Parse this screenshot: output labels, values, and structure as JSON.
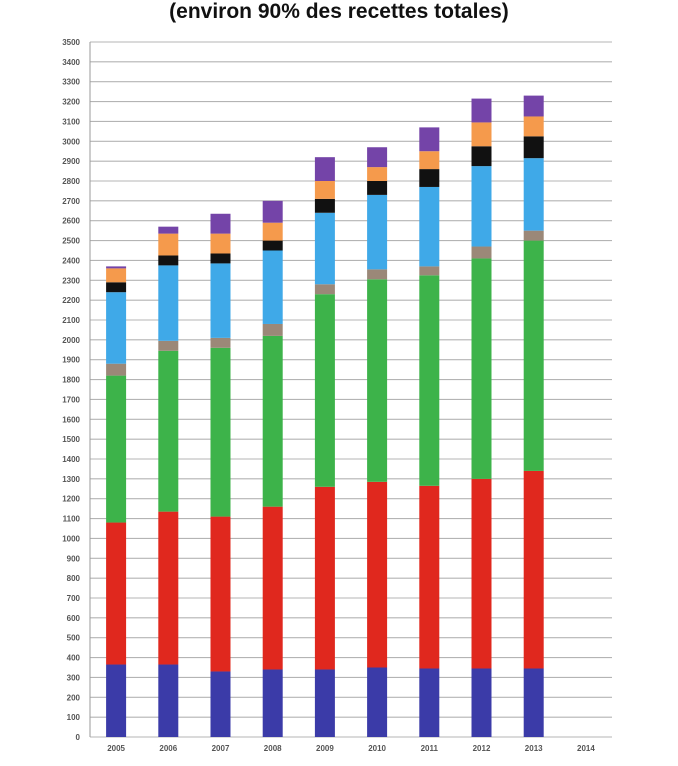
{
  "chart_data": {
    "type": "bar",
    "stacked": true,
    "title": "(environ 90% des recettes totales)",
    "xlabel": "",
    "ylabel": "",
    "ylim": [
      0,
      3500
    ],
    "ytick_step": 100,
    "grid": true,
    "legend": "none",
    "categories": [
      "2005",
      "2006",
      "2007",
      "2008",
      "2009",
      "2010",
      "2011",
      "2012",
      "2013",
      "2014"
    ],
    "series": [
      {
        "color": "#3b3ba8",
        "values": [
          365,
          365,
          330,
          340,
          340,
          350,
          345,
          345,
          345,
          null
        ]
      },
      {
        "color": "#e0281e",
        "values": [
          715,
          770,
          780,
          820,
          920,
          935,
          920,
          955,
          995,
          null
        ]
      },
      {
        "color": "#3db34a",
        "values": [
          740,
          810,
          850,
          860,
          970,
          1020,
          1060,
          1110,
          1160,
          null
        ]
      },
      {
        "color": "#9b8878",
        "values": [
          60,
          50,
          50,
          60,
          50,
          50,
          45,
          60,
          50,
          null
        ]
      },
      {
        "color": "#3fa9e8",
        "values": [
          360,
          380,
          375,
          370,
          360,
          375,
          400,
          405,
          365,
          null
        ]
      },
      {
        "color": "#111111",
        "values": [
          50,
          50,
          50,
          50,
          70,
          70,
          90,
          100,
          110,
          null
        ]
      },
      {
        "color": "#f59a4c",
        "values": [
          70,
          110,
          100,
          90,
          90,
          70,
          90,
          120,
          100,
          null
        ]
      },
      {
        "color": "#7444a8",
        "values": [
          10,
          35,
          100,
          110,
          120,
          100,
          120,
          120,
          105,
          null
        ]
      }
    ]
  }
}
